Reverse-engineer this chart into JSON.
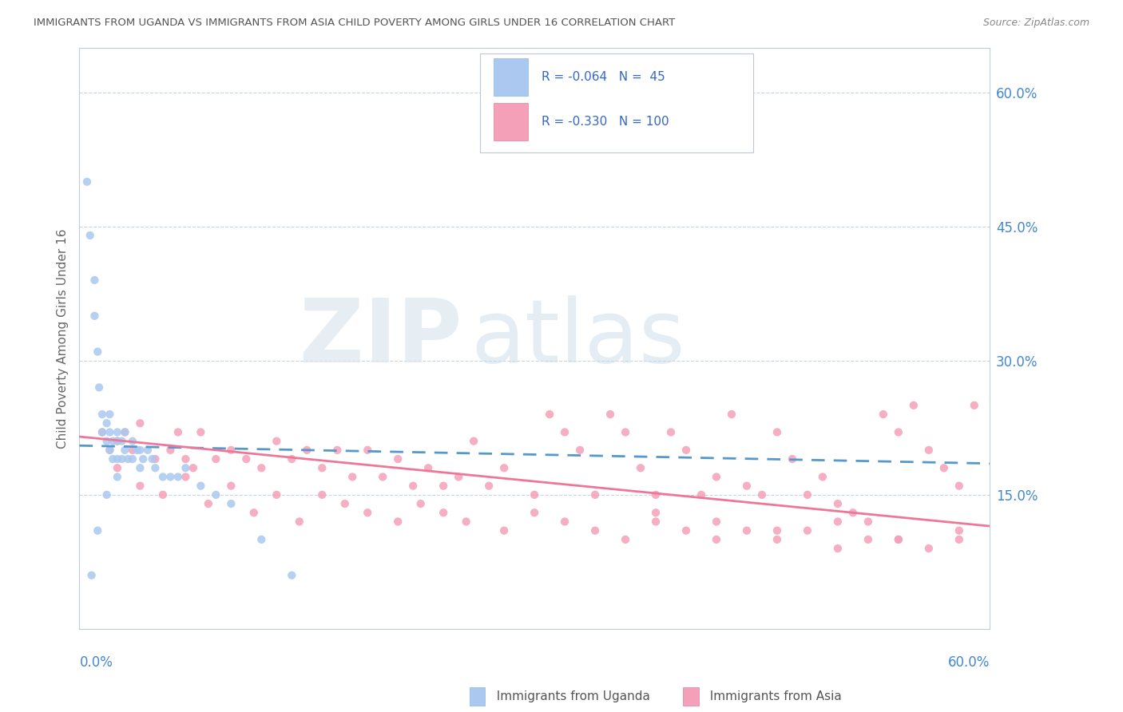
{
  "title": "IMMIGRANTS FROM UGANDA VS IMMIGRANTS FROM ASIA CHILD POVERTY AMONG GIRLS UNDER 16 CORRELATION CHART",
  "source": "Source: ZipAtlas.com",
  "ylabel": "Child Poverty Among Girls Under 16",
  "ytick_vals": [
    0.0,
    0.15,
    0.3,
    0.45,
    0.6
  ],
  "ytick_labels": [
    "",
    "15.0%",
    "30.0%",
    "45.0%",
    "60.0%"
  ],
  "xlim": [
    0.0,
    0.6
  ],
  "ylim": [
    0.0,
    0.65
  ],
  "uganda_color": "#aac8f0",
  "asia_color": "#f4a0b8",
  "uganda_line_color": "#5599cc",
  "asia_line_color": "#ee7799",
  "uganda_line_style": "-",
  "asia_line_style": "-",
  "uganda_trend_start": 0.205,
  "uganda_trend_end": 0.185,
  "asia_trend_start": 0.215,
  "asia_trend_end": 0.115,
  "uganda_scatter_x": [
    0.005,
    0.007,
    0.01,
    0.01,
    0.012,
    0.013,
    0.015,
    0.015,
    0.018,
    0.018,
    0.02,
    0.02,
    0.02,
    0.022,
    0.022,
    0.025,
    0.025,
    0.025,
    0.028,
    0.028,
    0.03,
    0.03,
    0.032,
    0.035,
    0.035,
    0.038,
    0.04,
    0.04,
    0.042,
    0.045,
    0.048,
    0.05,
    0.055,
    0.06,
    0.065,
    0.07,
    0.08,
    0.09,
    0.1,
    0.12,
    0.14,
    0.008,
    0.012,
    0.018,
    0.025
  ],
  "uganda_scatter_y": [
    0.5,
    0.44,
    0.39,
    0.35,
    0.31,
    0.27,
    0.24,
    0.22,
    0.23,
    0.21,
    0.24,
    0.22,
    0.2,
    0.21,
    0.19,
    0.22,
    0.21,
    0.19,
    0.21,
    0.19,
    0.22,
    0.2,
    0.19,
    0.21,
    0.19,
    0.2,
    0.2,
    0.18,
    0.19,
    0.2,
    0.19,
    0.18,
    0.17,
    0.17,
    0.17,
    0.18,
    0.16,
    0.15,
    0.14,
    0.1,
    0.06,
    0.06,
    0.11,
    0.15,
    0.17
  ],
  "asia_scatter_x": [
    0.015,
    0.02,
    0.025,
    0.03,
    0.035,
    0.04,
    0.05,
    0.06,
    0.065,
    0.07,
    0.075,
    0.08,
    0.09,
    0.1,
    0.11,
    0.12,
    0.13,
    0.14,
    0.15,
    0.16,
    0.17,
    0.18,
    0.19,
    0.2,
    0.21,
    0.22,
    0.23,
    0.24,
    0.25,
    0.26,
    0.27,
    0.28,
    0.3,
    0.31,
    0.32,
    0.33,
    0.34,
    0.35,
    0.36,
    0.37,
    0.38,
    0.39,
    0.4,
    0.41,
    0.42,
    0.43,
    0.44,
    0.45,
    0.46,
    0.47,
    0.48,
    0.49,
    0.5,
    0.51,
    0.52,
    0.53,
    0.54,
    0.55,
    0.56,
    0.57,
    0.58,
    0.59,
    0.025,
    0.04,
    0.055,
    0.07,
    0.085,
    0.1,
    0.115,
    0.13,
    0.145,
    0.16,
    0.175,
    0.19,
    0.21,
    0.225,
    0.24,
    0.255,
    0.28,
    0.3,
    0.32,
    0.34,
    0.36,
    0.38,
    0.4,
    0.42,
    0.44,
    0.46,
    0.48,
    0.5,
    0.52,
    0.54,
    0.56,
    0.58,
    0.38,
    0.42,
    0.46,
    0.5,
    0.54,
    0.58
  ],
  "asia_scatter_y": [
    0.22,
    0.2,
    0.21,
    0.22,
    0.2,
    0.23,
    0.19,
    0.2,
    0.22,
    0.19,
    0.18,
    0.22,
    0.19,
    0.2,
    0.19,
    0.18,
    0.21,
    0.19,
    0.2,
    0.18,
    0.2,
    0.17,
    0.2,
    0.17,
    0.19,
    0.16,
    0.18,
    0.16,
    0.17,
    0.21,
    0.16,
    0.18,
    0.15,
    0.24,
    0.22,
    0.2,
    0.15,
    0.24,
    0.22,
    0.18,
    0.15,
    0.22,
    0.2,
    0.15,
    0.17,
    0.24,
    0.16,
    0.15,
    0.22,
    0.19,
    0.15,
    0.17,
    0.14,
    0.13,
    0.12,
    0.24,
    0.22,
    0.25,
    0.2,
    0.18,
    0.16,
    0.25,
    0.18,
    0.16,
    0.15,
    0.17,
    0.14,
    0.16,
    0.13,
    0.15,
    0.12,
    0.15,
    0.14,
    0.13,
    0.12,
    0.14,
    0.13,
    0.12,
    0.11,
    0.13,
    0.12,
    0.11,
    0.1,
    0.12,
    0.11,
    0.1,
    0.11,
    0.1,
    0.11,
    0.09,
    0.1,
    0.1,
    0.09,
    0.1,
    0.13,
    0.12,
    0.11,
    0.12,
    0.1,
    0.11
  ]
}
